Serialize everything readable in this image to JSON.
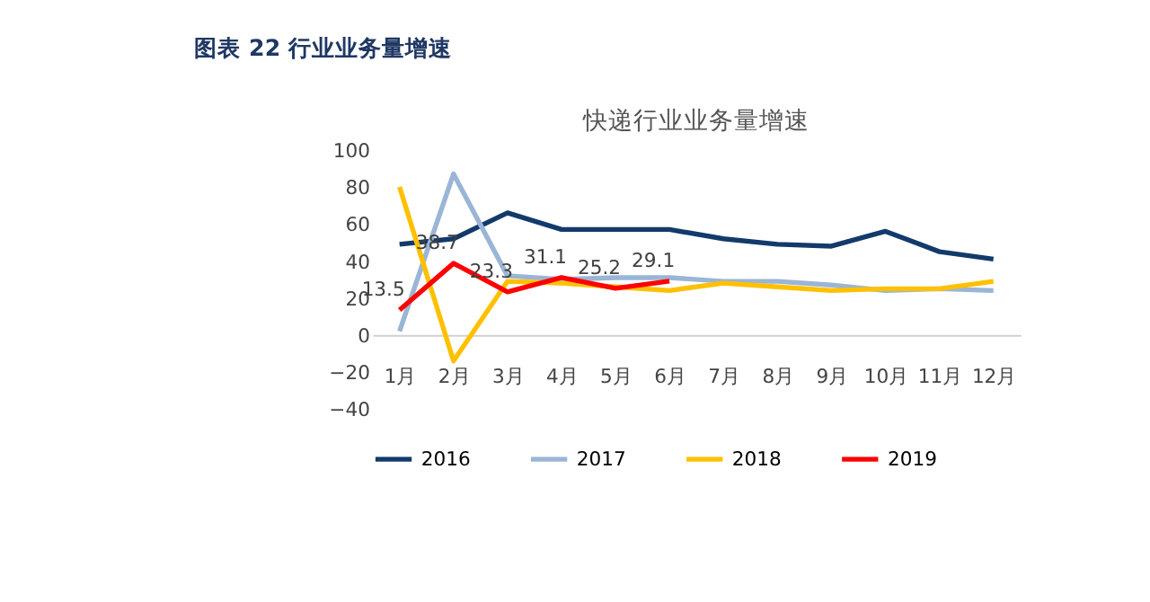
{
  "chart_data": {
    "type": "line",
    "title": "图表 22    行业业务量增速",
    "subtitle": "快递行业业务量增速",
    "categories": [
      "1月",
      "2月",
      "3月",
      "4月",
      "5月",
      "6月",
      "7月",
      "8月",
      "9月",
      "10月",
      "11月",
      "12月"
    ],
    "series": [
      {
        "name": "2016",
        "color": "#123a6b",
        "values": [
          49,
          52,
          66,
          57,
          57,
          57,
          52,
          49,
          48,
          56,
          45,
          41
        ]
      },
      {
        "name": "2017",
        "color": "#9ab5d6",
        "values": [
          2,
          87,
          32,
          30,
          31,
          31,
          29,
          29,
          27,
          24,
          25,
          24
        ]
      },
      {
        "name": "2018",
        "color": "#ffc000",
        "values": [
          80,
          -14,
          29,
          28,
          26,
          24,
          28,
          26,
          24,
          25,
          25,
          29
        ]
      },
      {
        "name": "2019",
        "color": "#ff0000",
        "values": [
          13.5,
          38.7,
          23.3,
          31.1,
          25.2,
          29.1,
          null,
          null,
          null,
          null,
          null,
          null
        ],
        "data_labels": true
      }
    ],
    "ylim": [
      -40,
      100
    ],
    "yticks": [
      -40,
      -20,
      0,
      20,
      40,
      60,
      80,
      100
    ],
    "grid": false,
    "legend": "bottom",
    "marker": "none",
    "line_style": "solid"
  }
}
